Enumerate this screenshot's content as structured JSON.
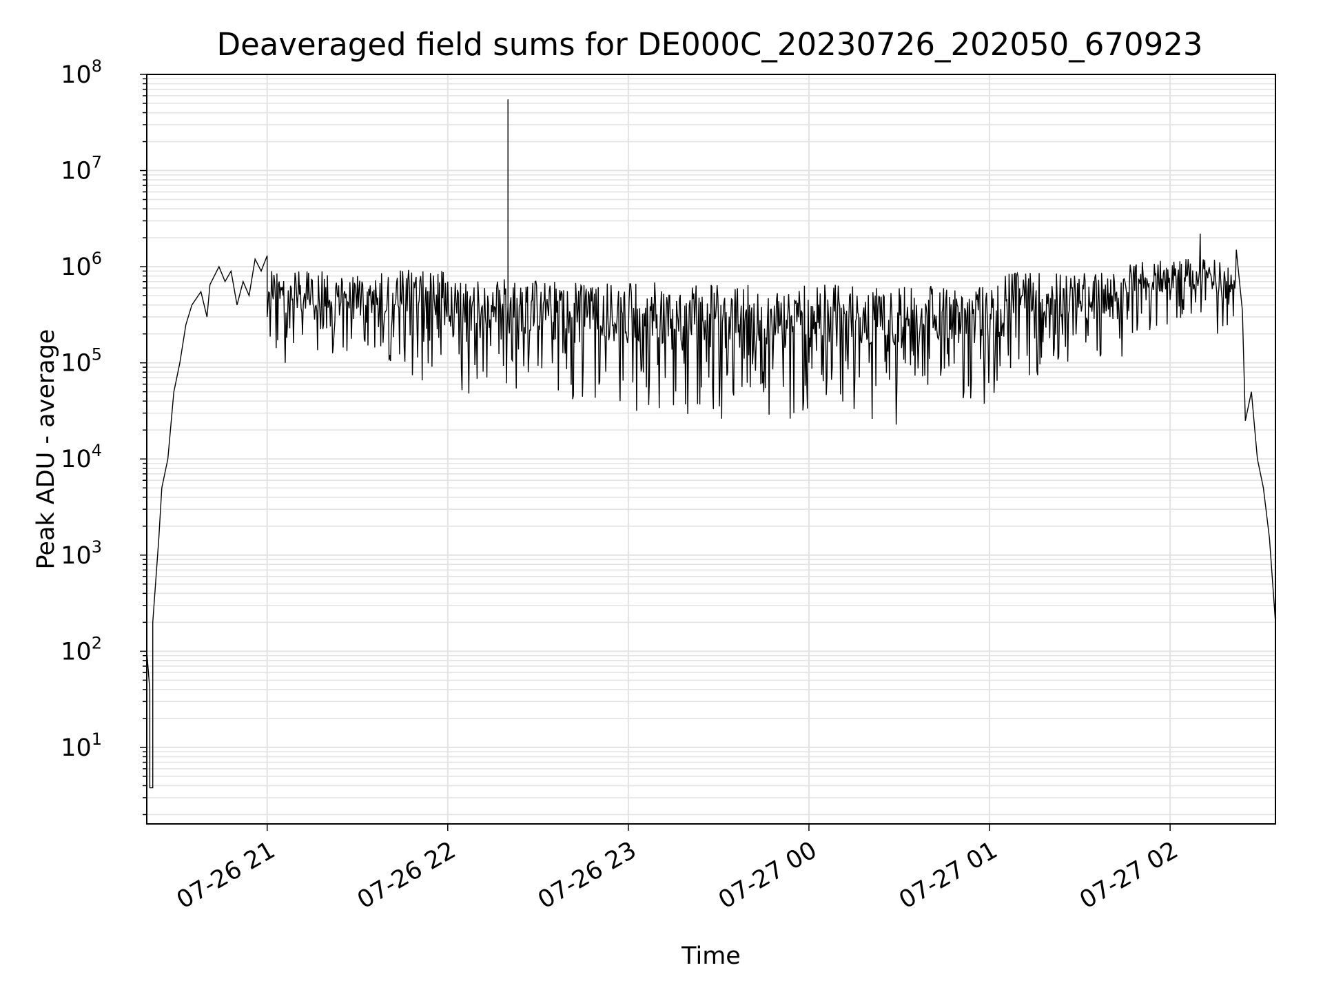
{
  "chart_data": {
    "type": "line",
    "title": "Deaveraged field sums for DE000C_20230726_202050_670923",
    "xlabel": "Time",
    "ylabel": "Peak ADU - average",
    "yscale": "log",
    "ylim": [
      1.6,
      100000000
    ],
    "xlim": [
      "2023-07-26 20:20",
      "2023-07-27 02:35"
    ],
    "grid": true,
    "line_color": "#000000",
    "grid_color": "#e3e3e3",
    "x_ticks": [
      {
        "value": "2023-07-26 21:00",
        "label": "07-26 21"
      },
      {
        "value": "2023-07-26 22:00",
        "label": "07-26 22"
      },
      {
        "value": "2023-07-26 23:00",
        "label": "07-26 23"
      },
      {
        "value": "2023-07-27 00:00",
        "label": "07-27 00"
      },
      {
        "value": "2023-07-27 01:00",
        "label": "07-27 01"
      },
      {
        "value": "2023-07-27 02:00",
        "label": "07-27 02"
      }
    ],
    "y_ticks": [
      {
        "value": 10,
        "base": "10",
        "exp": "1"
      },
      {
        "value": 100,
        "base": "10",
        "exp": "2"
      },
      {
        "value": 1000,
        "base": "10",
        "exp": "3"
      },
      {
        "value": 10000,
        "base": "10",
        "exp": "4"
      },
      {
        "value": 100000,
        "base": "10",
        "exp": "5"
      },
      {
        "value": 1000000,
        "base": "10",
        "exp": "6"
      },
      {
        "value": 10000000,
        "base": "10",
        "exp": "7"
      },
      {
        "value": 100000000,
        "base": "10",
        "exp": "8"
      }
    ],
    "series": [
      {
        "points": [
          [
            "2023-07-26 20:20",
            100
          ],
          [
            "2023-07-26 20:21",
            40
          ],
          [
            "2023-07-26 20:21",
            3.8
          ],
          [
            "2023-07-26 20:22",
            3.8
          ],
          [
            "2023-07-26 20:22",
            200
          ],
          [
            "2023-07-26 20:24",
            1500
          ],
          [
            "2023-07-26 20:25",
            5000
          ],
          [
            "2023-07-26 20:27",
            10000
          ],
          [
            "2023-07-26 20:29",
            50000
          ],
          [
            "2023-07-26 20:31",
            100000
          ],
          [
            "2023-07-26 20:33",
            250000
          ],
          [
            "2023-07-26 20:35",
            400000
          ],
          [
            "2023-07-26 20:38",
            550000
          ],
          [
            "2023-07-26 20:40",
            300000
          ],
          [
            "2023-07-26 20:41",
            650000
          ],
          [
            "2023-07-26 20:44",
            1000000
          ],
          [
            "2023-07-26 20:46",
            700000
          ],
          [
            "2023-07-26 20:48",
            900000
          ],
          [
            "2023-07-26 20:50",
            400000
          ],
          [
            "2023-07-26 20:52",
            700000
          ],
          [
            "2023-07-26 20:54",
            500000
          ],
          [
            "2023-07-26 20:56",
            1200000
          ],
          [
            "2023-07-26 20:58",
            900000
          ],
          [
            "2023-07-26 21:00",
            1300000
          ],
          [
            "2023-07-26 21:00",
            300000
          ],
          [
            "2023-07-26 21:04",
            700000
          ],
          [
            "2023-07-26 21:06",
            100000
          ],
          [
            "2023-07-26 21:08",
            600000
          ],
          [
            "2023-07-26 21:30",
            800000
          ],
          [
            "2023-07-26 21:45",
            900000
          ],
          [
            "2023-07-26 22:00",
            700000
          ],
          [
            "2023-07-26 22:20",
            400000
          ],
          [
            "2023-07-26 22:20",
            55000000
          ],
          [
            "2023-07-26 22:20",
            400000
          ],
          [
            "2023-07-26 22:40",
            300000
          ],
          [
            "2023-07-26 23:00",
            200000
          ],
          [
            "2023-07-26 23:20",
            150000
          ],
          [
            "2023-07-26 23:40",
            120000
          ],
          [
            "2023-07-27 00:00",
            100000
          ],
          [
            "2023-07-27 00:20",
            100000
          ],
          [
            "2023-07-27 00:40",
            110000
          ],
          [
            "2023-07-27 01:00",
            130000
          ],
          [
            "2023-07-27 01:20",
            180000
          ],
          [
            "2023-07-27 01:40",
            300000
          ],
          [
            "2023-07-27 02:00",
            450000
          ],
          [
            "2023-07-27 02:05",
            700000
          ],
          [
            "2023-07-27 02:10",
            2200000
          ],
          [
            "2023-07-27 02:15",
            800000
          ],
          [
            "2023-07-27 02:22",
            1500000
          ],
          [
            "2023-07-27 02:24",
            350000
          ],
          [
            "2023-07-27 02:25",
            25000
          ],
          [
            "2023-07-27 02:27",
            50000
          ],
          [
            "2023-07-27 02:29",
            10000
          ],
          [
            "2023-07-27 02:31",
            5000
          ],
          [
            "2023-07-27 02:33",
            1500
          ],
          [
            "2023-07-27 02:35",
            200
          ]
        ]
      }
    ],
    "noise": {
      "note_free": true,
      "segments": [
        {
          "from": "2023-07-26 21:00",
          "to": "2023-07-26 21:39",
          "hi": 900000,
          "lo": 120000
        },
        {
          "from": "2023-07-26 21:39",
          "to": "2023-07-26 22:00",
          "hi": 950000,
          "lo": 60000
        },
        {
          "from": "2023-07-26 22:00",
          "to": "2023-07-26 22:35",
          "hi": 750000,
          "lo": 45000
        },
        {
          "from": "2023-07-26 22:35",
          "to": "2023-07-26 23:30",
          "hi": 700000,
          "lo": 25000
        },
        {
          "from": "2023-07-26 23:30",
          "to": "2023-07-27 00:30",
          "hi": 650000,
          "lo": 22000
        },
        {
          "from": "2023-07-27 00:30",
          "to": "2023-07-27 01:05",
          "hi": 650000,
          "lo": 35000
        },
        {
          "from": "2023-07-27 01:05",
          "to": "2023-07-27 01:45",
          "hi": 900000,
          "lo": 70000
        },
        {
          "from": "2023-07-27 01:45",
          "to": "2023-07-27 02:22",
          "hi": 1200000,
          "lo": 200000
        }
      ]
    }
  }
}
